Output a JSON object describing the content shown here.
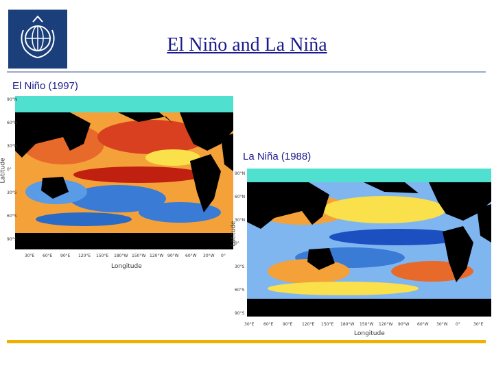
{
  "slide": {
    "title": "El Niño and La Niña",
    "colors": {
      "title": "#1a1a8c",
      "accent_bar": "#f0b000",
      "ocean_base": "#4fe0d0"
    }
  },
  "logo": {
    "name": "wmo-logo"
  },
  "panels": {
    "nino": {
      "label": "El Niño (1997)",
      "x_axis_label": "Longitude",
      "y_axis_label": "Latitude",
      "x_ticks": [
        "30°E",
        "60°E",
        "90°E",
        "120°E",
        "150°E",
        "180°W",
        "150°W",
        "120°W",
        "90°W",
        "60°W",
        "30°W",
        "0°"
      ],
      "y_ticks": [
        "90°N",
        "60°N",
        "30°N",
        "0°",
        "30°S",
        "60°S",
        "90°S"
      ]
    },
    "nina": {
      "label": "La Niña (1988)",
      "x_axis_label": "Longitude",
      "y_axis_label": "Latitude",
      "x_ticks": [
        "30°E",
        "60°E",
        "90°E",
        "120°E",
        "150°E",
        "180°W",
        "150°W",
        "120°W",
        "90°W",
        "60°W",
        "30°W",
        "0°",
        "30°E"
      ],
      "y_ticks": [
        "90°N",
        "60°N",
        "30°N",
        "0°",
        "30°S",
        "60°S",
        "90°S"
      ]
    }
  }
}
